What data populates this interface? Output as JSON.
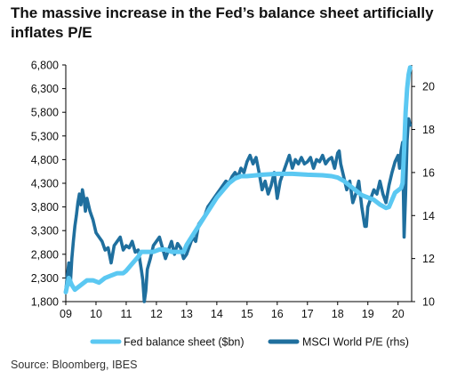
{
  "title": "The massive increase in the Fed’s balance sheet artificially inflates P/E",
  "source": "Source: Bloomberg, IBES",
  "chart_data": {
    "type": "line",
    "x_ticks": [
      "09",
      "10",
      "11",
      "12",
      "13",
      "14",
      "15",
      "16",
      "17",
      "18",
      "19",
      "20"
    ],
    "x_tick_values": [
      2009,
      2010,
      2011,
      2012,
      2013,
      2014,
      2015,
      2016,
      2017,
      2018,
      2019,
      2020
    ],
    "xlim": [
      2009,
      2020.45
    ],
    "y_left": {
      "ticks": [
        "1,800",
        "2,300",
        "2,800",
        "3,300",
        "3,800",
        "4,300",
        "4,800",
        "5,300",
        "5,800",
        "6,300",
        "6,800"
      ],
      "tick_values": [
        1800,
        2300,
        2800,
        3300,
        3800,
        4300,
        4800,
        5300,
        5800,
        6300,
        6800
      ],
      "lim": [
        1800,
        6800
      ]
    },
    "y_right": {
      "ticks": [
        "10",
        "12",
        "14",
        "16",
        "18",
        "20"
      ],
      "tick_values": [
        10,
        12,
        14,
        16,
        18,
        20
      ],
      "lim": [
        10,
        21
      ]
    },
    "grid": false,
    "legend_position": "bottom",
    "series": [
      {
        "name": "Fed balance sheet ($bn)",
        "axis": "left",
        "color": "#5bc8f2",
        "x": [
          2009.0,
          2009.1,
          2009.2,
          2009.3,
          2009.4,
          2009.5,
          2009.7,
          2009.9,
          2010.1,
          2010.3,
          2010.5,
          2010.7,
          2010.9,
          2011.0,
          2011.2,
          2011.4,
          2011.5,
          2011.7,
          2011.9,
          2012.1,
          2012.3,
          2012.5,
          2012.7,
          2012.9,
          2013.0,
          2013.2,
          2013.4,
          2013.6,
          2013.8,
          2014.0,
          2014.2,
          2014.4,
          2014.6,
          2014.8,
          2015.0,
          2015.5,
          2016.0,
          2016.5,
          2017.0,
          2017.5,
          2017.8,
          2018.0,
          2018.2,
          2018.4,
          2018.6,
          2018.8,
          2019.0,
          2019.2,
          2019.4,
          2019.6,
          2019.7,
          2019.8,
          2019.9,
          2020.0,
          2020.1,
          2020.15,
          2020.2,
          2020.25,
          2020.3,
          2020.35,
          2020.4
        ],
        "values": [
          2000,
          2300,
          2150,
          2050,
          2100,
          2150,
          2250,
          2250,
          2200,
          2300,
          2350,
          2400,
          2400,
          2450,
          2600,
          2750,
          2850,
          2850,
          2850,
          2900,
          2900,
          2850,
          2850,
          2850,
          3000,
          3200,
          3400,
          3600,
          3800,
          4000,
          4150,
          4300,
          4400,
          4450,
          4450,
          4480,
          4500,
          4500,
          4480,
          4470,
          4450,
          4420,
          4350,
          4250,
          4150,
          4050,
          4000,
          3950,
          3850,
          3780,
          3800,
          3950,
          4100,
          4150,
          4200,
          4300,
          5000,
          5800,
          6300,
          6600,
          6750
        ]
      },
      {
        "name": "MSCI World P/E (rhs)",
        "axis": "right",
        "color": "#1f6f9e",
        "x": [
          2009.0,
          2009.05,
          2009.1,
          2009.15,
          2009.2,
          2009.25,
          2009.3,
          2009.35,
          2009.4,
          2009.45,
          2009.5,
          2009.55,
          2009.6,
          2009.65,
          2009.7,
          2009.75,
          2009.8,
          2009.85,
          2009.9,
          2009.95,
          2010.0,
          2010.1,
          2010.2,
          2010.3,
          2010.4,
          2010.5,
          2010.6,
          2010.7,
          2010.8,
          2010.9,
          2011.0,
          2011.1,
          2011.2,
          2011.3,
          2011.4,
          2011.5,
          2011.55,
          2011.6,
          2011.65,
          2011.7,
          2011.8,
          2011.9,
          2012.0,
          2012.1,
          2012.2,
          2012.3,
          2012.4,
          2012.5,
          2012.6,
          2012.7,
          2012.8,
          2012.9,
          2013.0,
          2013.1,
          2013.2,
          2013.3,
          2013.4,
          2013.5,
          2013.6,
          2013.7,
          2013.8,
          2013.9,
          2014.0,
          2014.1,
          2014.2,
          2014.3,
          2014.4,
          2014.5,
          2014.6,
          2014.7,
          2014.8,
          2014.9,
          2015.0,
          2015.1,
          2015.2,
          2015.3,
          2015.4,
          2015.5,
          2015.6,
          2015.7,
          2015.8,
          2015.9,
          2016.0,
          2016.1,
          2016.2,
          2016.3,
          2016.4,
          2016.5,
          2016.6,
          2016.7,
          2016.8,
          2016.9,
          2017.0,
          2017.1,
          2017.2,
          2017.3,
          2017.4,
          2017.5,
          2017.6,
          2017.7,
          2017.8,
          2017.9,
          2018.0,
          2018.05,
          2018.1,
          2018.2,
          2018.3,
          2018.4,
          2018.5,
          2018.6,
          2018.7,
          2018.8,
          2018.9,
          2018.95,
          2019.0,
          2019.1,
          2019.2,
          2019.3,
          2019.4,
          2019.5,
          2019.6,
          2019.7,
          2019.8,
          2019.9,
          2020.0,
          2020.05,
          2020.1,
          2020.15,
          2020.2,
          2020.25,
          2020.3,
          2020.35,
          2020.4
        ],
        "values": [
          10.5,
          11.2,
          11.8,
          10.8,
          12.0,
          12.8,
          13.5,
          14.0,
          14.6,
          15.0,
          14.5,
          15.2,
          14.8,
          14.2,
          14.8,
          14.5,
          14.2,
          14.0,
          13.8,
          13.5,
          13.2,
          13.0,
          12.8,
          12.4,
          12.5,
          11.8,
          12.6,
          12.8,
          13.0,
          12.4,
          12.6,
          12.5,
          12.8,
          12.3,
          12.4,
          11.5,
          11.0,
          10.0,
          10.5,
          11.5,
          12.0,
          12.6,
          12.8,
          13.0,
          12.5,
          12.0,
          12.4,
          12.8,
          12.2,
          12.7,
          12.5,
          12.0,
          12.2,
          12.6,
          13.0,
          12.8,
          13.6,
          13.8,
          14.0,
          14.4,
          14.6,
          14.8,
          15.0,
          15.2,
          15.4,
          15.6,
          15.5,
          15.8,
          16.0,
          15.8,
          16.2,
          16.0,
          16.5,
          16.8,
          16.4,
          16.7,
          16.0,
          15.2,
          15.6,
          15.0,
          15.4,
          16.0,
          14.8,
          15.6,
          16.0,
          16.4,
          16.8,
          16.2,
          16.6,
          16.4,
          16.7,
          16.4,
          16.5,
          16.7,
          16.2,
          16.6,
          16.5,
          16.8,
          16.4,
          16.6,
          16.7,
          16.2,
          16.9,
          17.0,
          16.4,
          15.8,
          15.2,
          15.6,
          14.6,
          15.0,
          15.6,
          14.4,
          13.5,
          13.5,
          14.4,
          14.8,
          15.2,
          15.0,
          15.6,
          15.0,
          14.6,
          15.4,
          16.0,
          16.5,
          16.8,
          16.2,
          17.0,
          17.4,
          13.0,
          15.0,
          17.5,
          18.5,
          18.2
        ]
      }
    ]
  }
}
